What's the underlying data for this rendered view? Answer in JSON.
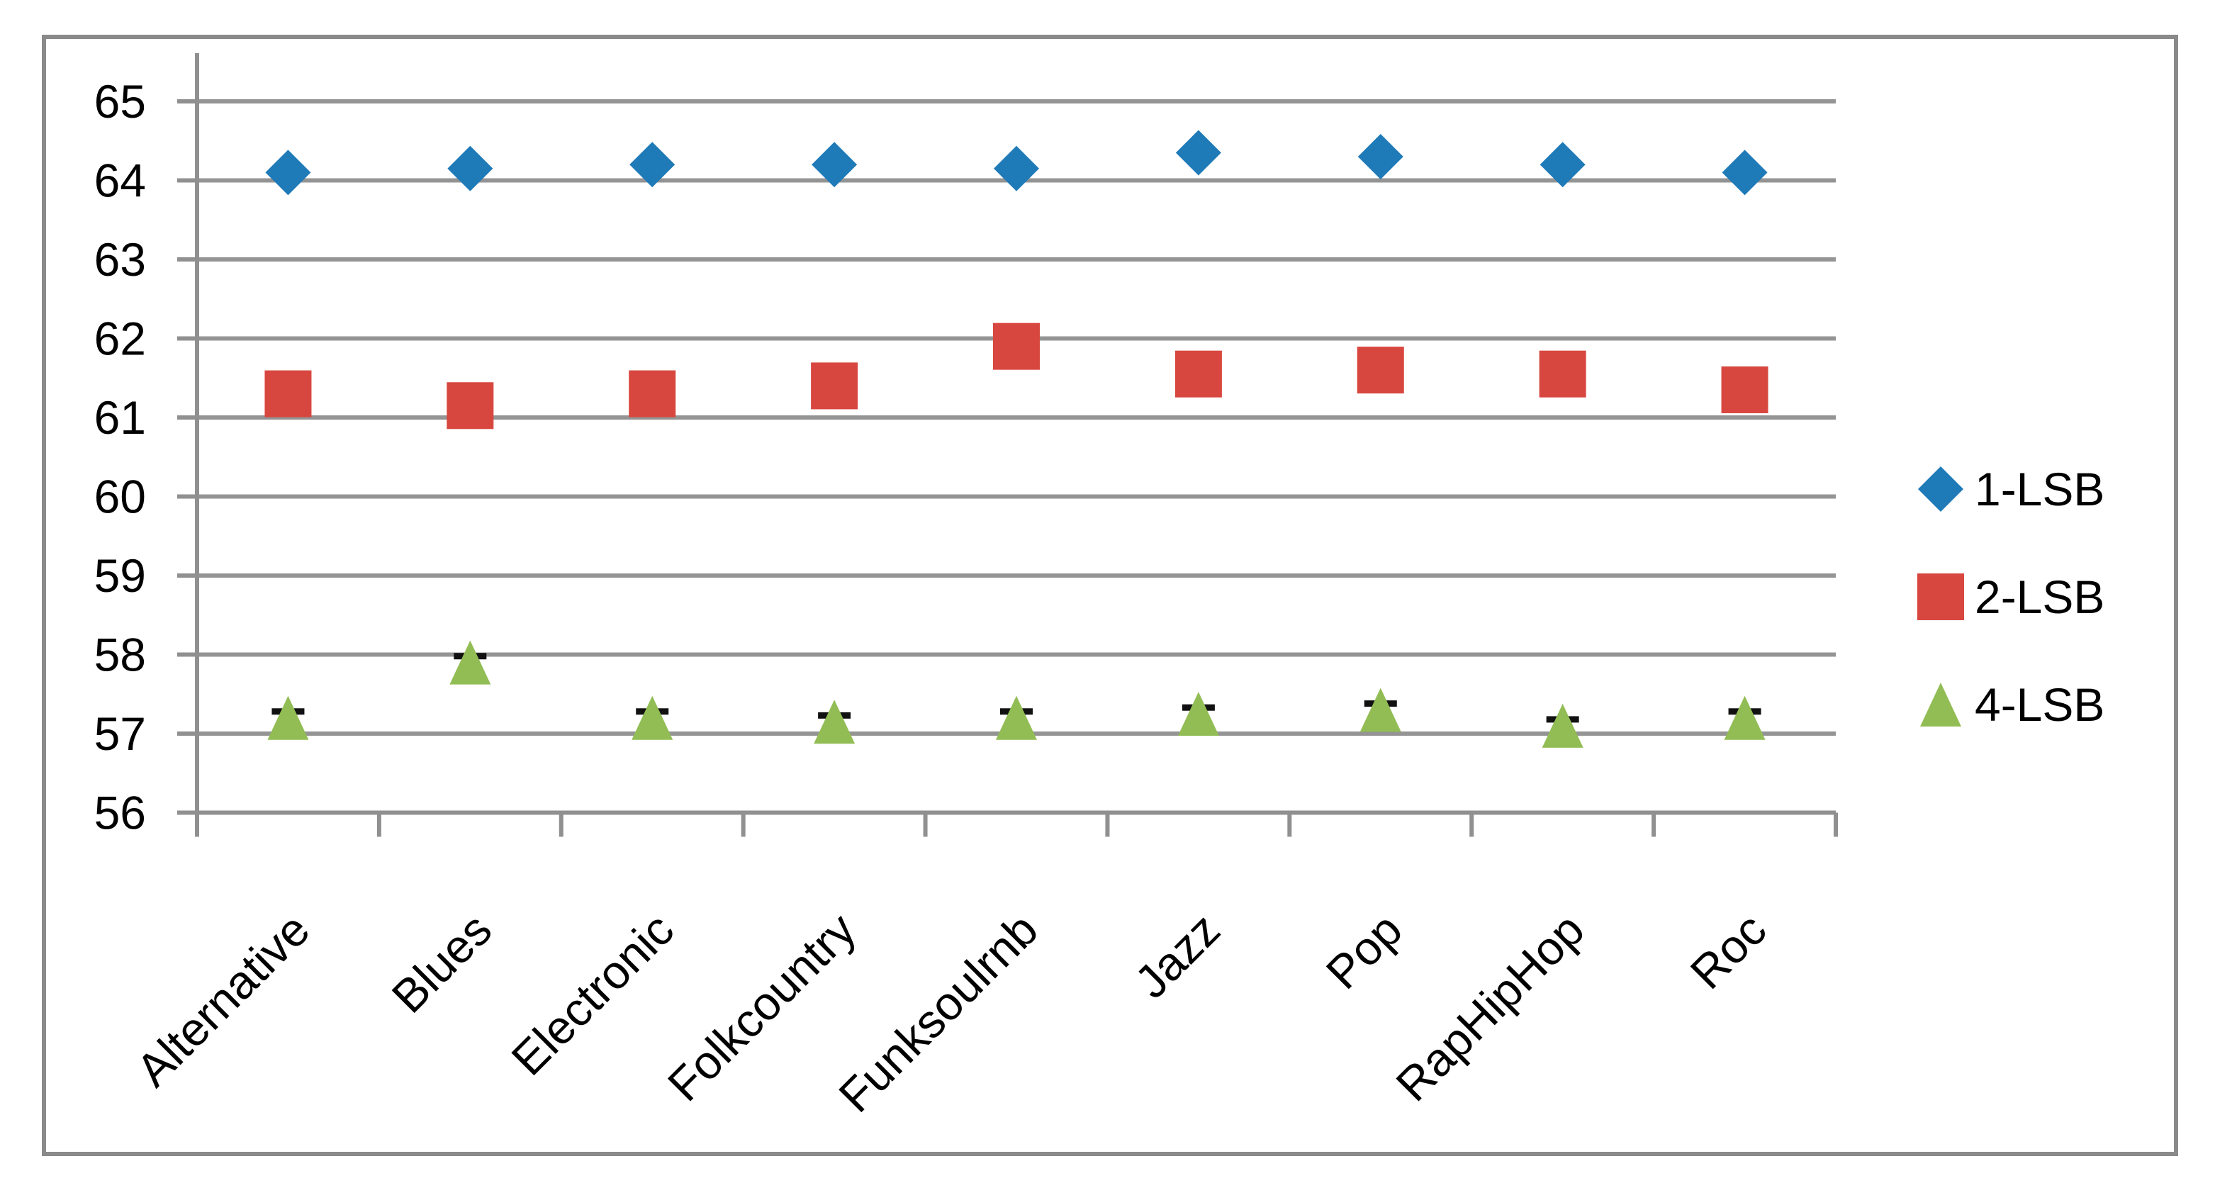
{
  "chart_data": {
    "type": "scatter",
    "title": "",
    "xlabel": "",
    "ylabel": "",
    "categories": [
      "Alternative",
      "Blues",
      "Electronic",
      "Folkcountry",
      "Funksoulrnb",
      "Jazz",
      "Pop",
      "RapHipHop",
      "Roc"
    ],
    "series": [
      {
        "name": "1-LSB",
        "marker": "diamond",
        "color": "#1F7AB8",
        "values": [
          64.1,
          64.15,
          64.2,
          64.2,
          64.15,
          64.35,
          64.3,
          64.2,
          64.1
        ]
      },
      {
        "name": "2-LSB",
        "marker": "square",
        "color": "#D8473F",
        "values": [
          61.3,
          61.15,
          61.3,
          61.4,
          61.9,
          61.55,
          61.6,
          61.55,
          61.35
        ]
      },
      {
        "name": "4-LSB",
        "marker": "triangle",
        "color": "#92BD55",
        "values": [
          57.2,
          57.9,
          57.2,
          57.15,
          57.2,
          57.25,
          57.3,
          57.1,
          57.2
        ],
        "cap_marks": {
          "description": "small black horizontal dash behind each triangle apex",
          "color": "#111111",
          "value_offset": 0.08
        }
      }
    ],
    "y_axis": {
      "min": 56,
      "max": 65,
      "tick_step": 1,
      "tick_labels": [
        "56",
        "57",
        "58",
        "59",
        "60",
        "61",
        "62",
        "63",
        "64",
        "65"
      ]
    },
    "x_axis": {
      "label_rotation_deg": -45
    },
    "legend": {
      "position": "right",
      "items": [
        "1-LSB",
        "2-LSB",
        "4-LSB"
      ]
    },
    "grid": "horizontal",
    "style": {
      "gridline_color": "#949494",
      "axis_color": "#909090",
      "border_color": "#8A8A8A",
      "background": "#FFFFFF",
      "text_color": "#000000"
    }
  }
}
